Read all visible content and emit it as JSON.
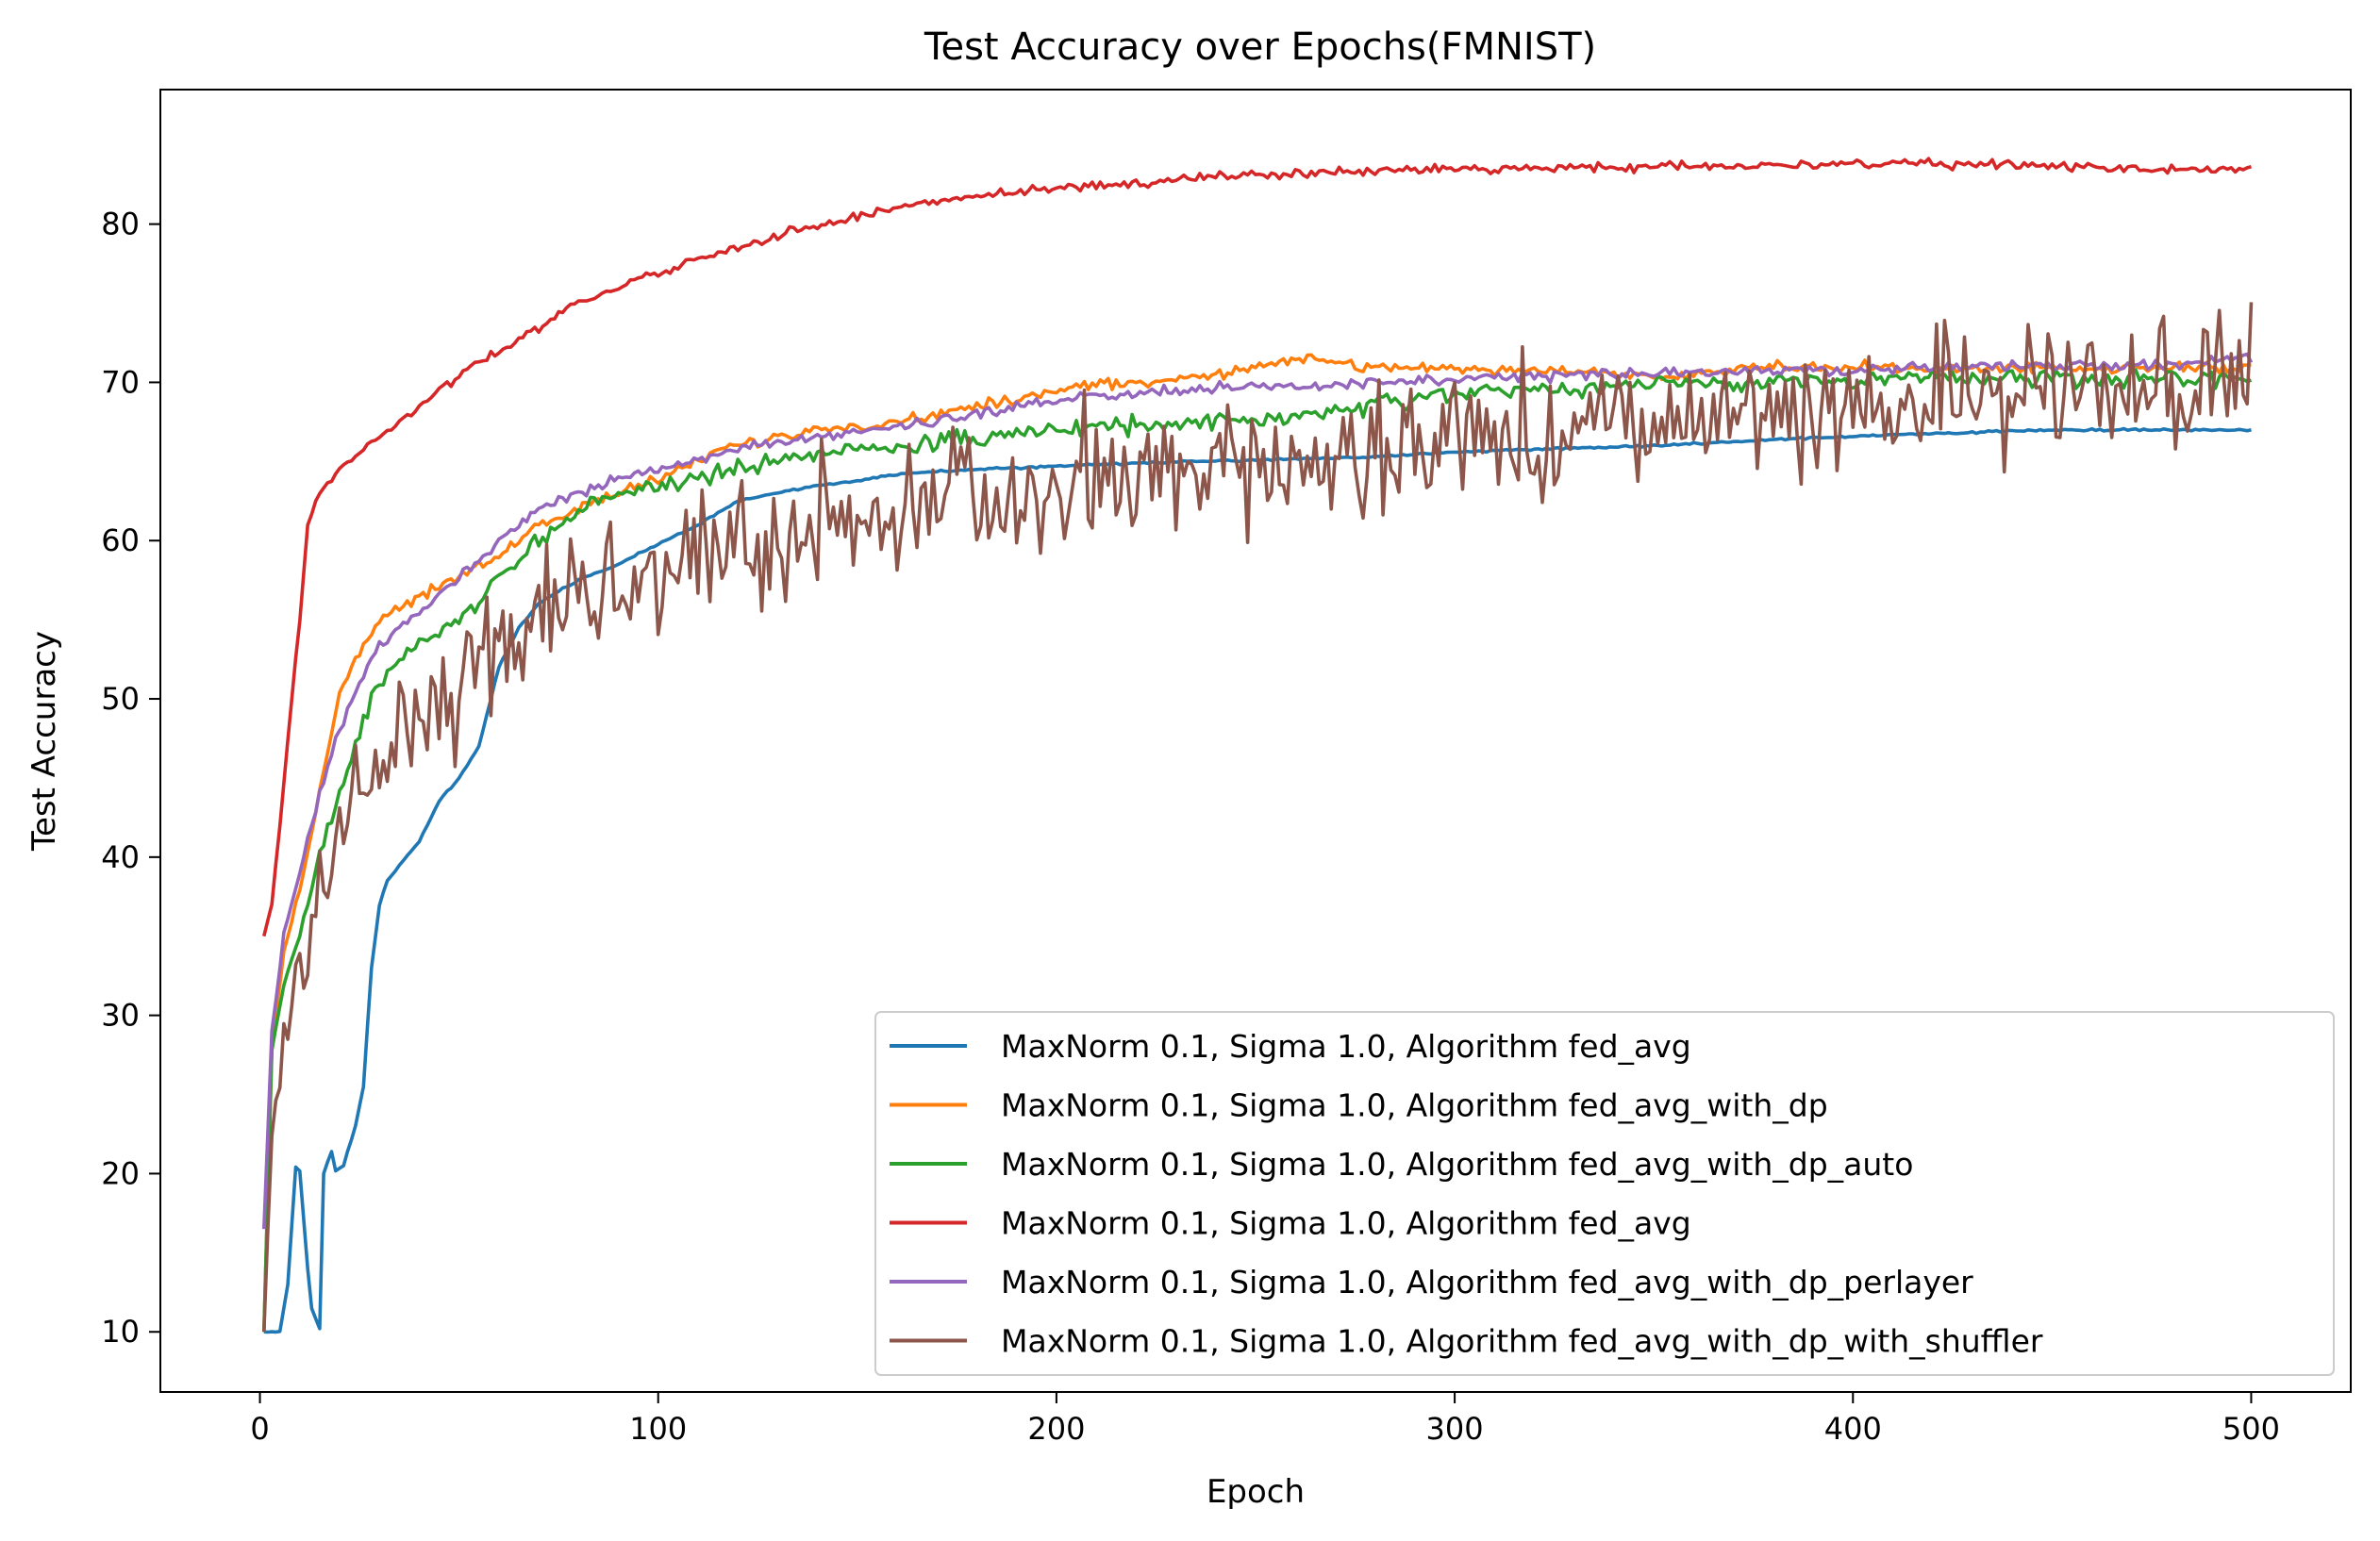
{
  "chart_data": {
    "type": "line",
    "title": "Test Accuracy over Epochs(FMNIST)",
    "xlabel": "Epoch",
    "ylabel": "Test Accuracy",
    "xlim": [
      -25,
      525
    ],
    "ylim": [
      6.2,
      88.5
    ],
    "xticks": [
      0,
      100,
      200,
      300,
      400,
      500
    ],
    "yticks": [
      10,
      20,
      30,
      40,
      50,
      60,
      70,
      80
    ],
    "grid": false,
    "legend_position": "bottom-right",
    "series": [
      {
        "name": "MaxNorm 0.1, Sigma 1.0, Algorithm fed_avg",
        "color": "#1f77b4",
        "noise": 0.1,
        "x": [
          1,
          5,
          7,
          9,
          10,
          12,
          13,
          15,
          16,
          18,
          19,
          21,
          24,
          26,
          28,
          30,
          32,
          35,
          40,
          45,
          50,
          55,
          60,
          65,
          70,
          75,
          80,
          90,
          100,
          110,
          120,
          130,
          140,
          150,
          160,
          180,
          200,
          220,
          250,
          280,
          300,
          350,
          400,
          450,
          500
        ],
        "y": [
          10,
          10,
          13,
          20.4,
          20.2,
          14,
          11.5,
          10.2,
          20,
          21.4,
          20.2,
          20.5,
          23,
          25.5,
          33,
          37,
          38.5,
          39.5,
          41,
          43.5,
          45,
          47,
          52,
          54.5,
          56,
          56.8,
          57.5,
          58.5,
          59.8,
          61,
          62.5,
          63,
          63.5,
          63.8,
          64.2,
          64.5,
          64.7,
          64.9,
          65.1,
          65.3,
          65.6,
          66,
          66.6,
          67,
          67
        ]
      },
      {
        "name": "MaxNorm 0.1, Sigma 1.0, Algorithm fed_avg_with_dp",
        "color": "#ff7f0e",
        "noise": 0.5,
        "x": [
          1,
          3,
          6,
          10,
          15,
          20,
          25,
          30,
          40,
          50,
          60,
          70,
          80,
          90,
          100,
          120,
          140,
          160,
          180,
          200,
          220,
          240,
          260,
          280,
          300,
          320,
          340,
          360,
          380,
          400,
          420,
          440,
          460,
          480,
          500
        ],
        "y": [
          10,
          28,
          34,
          38,
          44,
          50.5,
          53,
          55,
          56.5,
          57.8,
          59,
          61,
          62,
          63,
          64,
          66,
          67,
          67.5,
          68.5,
          69.5,
          70,
          70.5,
          71.5,
          71,
          70.8,
          70.8,
          70.5,
          70.5,
          71,
          71,
          70.8,
          71,
          70.8,
          71,
          70.8
        ]
      },
      {
        "name": "MaxNorm 0.1, Sigma 1.0, Algorithm fed_avg_with_dp_auto",
        "color": "#2ca02c",
        "noise": 0.8,
        "x": [
          1,
          3,
          6,
          10,
          15,
          20,
          25,
          30,
          40,
          50,
          60,
          70,
          80,
          90,
          100,
          120,
          140,
          160,
          180,
          200,
          220,
          240,
          260,
          280,
          300,
          320,
          340,
          360,
          380,
          400,
          420,
          440,
          460,
          480,
          500
        ],
        "y": [
          10,
          28,
          32,
          35,
          40,
          44,
          48,
          51,
          53.5,
          55,
          57.5,
          60,
          62,
          63,
          63.5,
          64.5,
          65.5,
          66,
          66.5,
          67,
          67.3,
          67.5,
          67.8,
          68.5,
          69.3,
          69.5,
          69.7,
          70,
          70,
          70.2,
          70.3,
          70.3,
          70.3,
          70.3,
          70.3
        ]
      },
      {
        "name": "MaxNorm 0.1, Sigma 1.0, Algorithm fed_avg",
        "color": "#d62728",
        "noise": 0.4,
        "x": [
          1,
          3,
          5,
          8,
          10,
          12,
          15,
          20,
          25,
          30,
          40,
          50,
          60,
          70,
          80,
          90,
          100,
          120,
          140,
          160,
          180,
          200,
          220,
          240,
          260,
          280,
          300,
          320,
          340,
          360,
          380,
          400,
          420,
          440,
          460,
          480,
          500
        ],
        "y": [
          35,
          37,
          42,
          50,
          55,
          61,
          63,
          64.5,
          65.5,
          66.5,
          68.5,
          70.5,
          72,
          73.5,
          75,
          76,
          77,
          78.5,
          80,
          81,
          81.8,
          82.2,
          82.6,
          83,
          83.2,
          83.4,
          83.5,
          83.5,
          83.6,
          83.7,
          83.7,
          83.8,
          83.8,
          83.7,
          83.6,
          83.5,
          83.5
        ]
      },
      {
        "name": "MaxNorm 0.1, Sigma 1.0, Algorithm fed_avg_with_dp_perlayer",
        "color": "#9467bd",
        "noise": 0.5,
        "x": [
          1,
          3,
          6,
          10,
          15,
          20,
          25,
          30,
          40,
          50,
          60,
          70,
          80,
          90,
          100,
          120,
          140,
          160,
          180,
          200,
          220,
          240,
          260,
          280,
          300,
          320,
          340,
          360,
          380,
          400,
          420,
          440,
          460,
          480,
          500
        ],
        "y": [
          16.5,
          29,
          35,
          39,
          44,
          48,
          51,
          53.5,
          55.5,
          57.5,
          60,
          62,
          63,
          64,
          64.5,
          65.8,
          66.5,
          67.2,
          68,
          68.8,
          69.3,
          69.6,
          69.8,
          70,
          70.2,
          70.4,
          70.5,
          70.6,
          70.7,
          70.8,
          70.9,
          71,
          71,
          71.2,
          71.5
        ]
      },
      {
        "name": "MaxNorm 0.1, Sigma 1.0, Algorithm fed_avg_with_dp_with_shuffler",
        "color": "#8c564b",
        "noise": 6.5,
        "x": [
          1,
          3,
          6,
          10,
          15,
          20,
          25,
          30,
          40,
          50,
          60,
          70,
          80,
          90,
          100,
          120,
          140,
          160,
          180,
          200,
          220,
          240,
          260,
          280,
          300,
          320,
          340,
          360,
          380,
          400,
          420,
          440,
          460,
          480,
          500
        ],
        "y": [
          10,
          22,
          28,
          33,
          38,
          40,
          44,
          46,
          48.5,
          50,
          53,
          55,
          56.5,
          57.5,
          58.5,
          59.5,
          60.5,
          61.5,
          62.5,
          63.2,
          64,
          64.5,
          65,
          65.5,
          66,
          66.5,
          67,
          67.3,
          67.8,
          68.3,
          68.8,
          69.2,
          69.6,
          70,
          70.5
        ]
      }
    ]
  }
}
